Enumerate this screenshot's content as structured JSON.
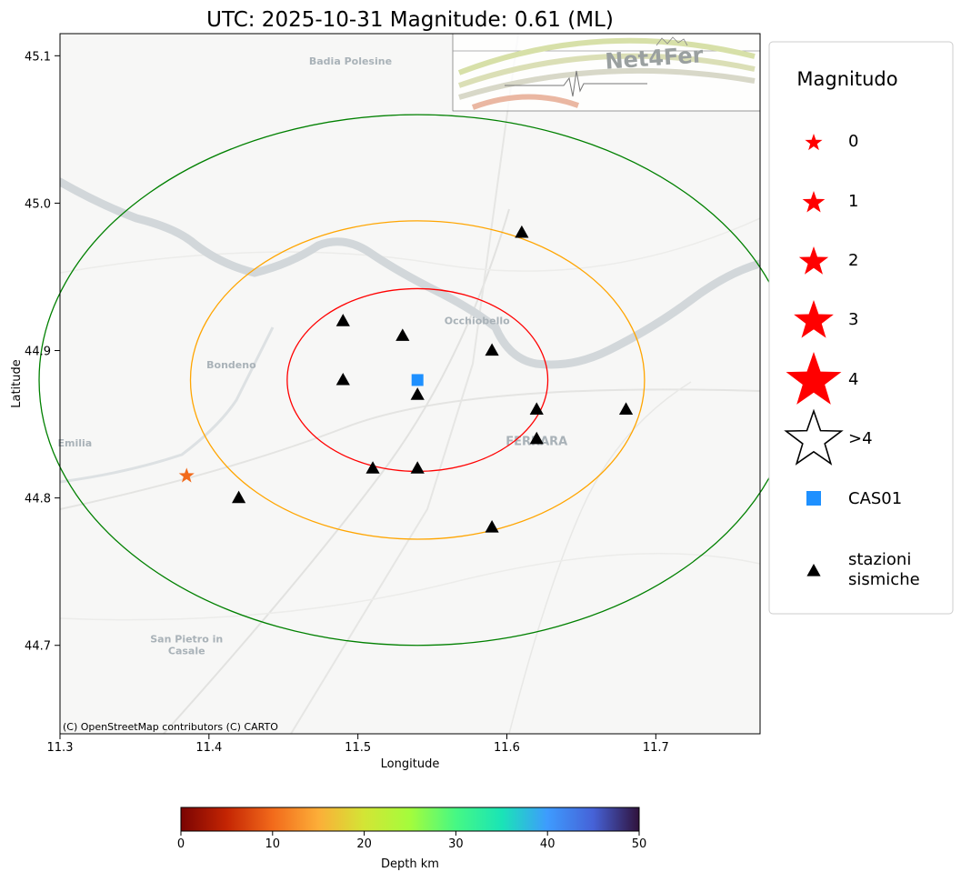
{
  "title": "UTC: 2025-10-31 Magnitude: 0.61 (ML)",
  "map": {
    "xlabel": "Longitude",
    "ylabel": "Latitude",
    "xlim": [
      11.3,
      11.77
    ],
    "ylim": [
      44.64,
      45.115
    ],
    "xticks": [
      "11.3",
      "11.4",
      "11.5",
      "11.6",
      "11.7"
    ],
    "yticks": [
      "44.7",
      "44.8",
      "44.9",
      "45.0",
      "45.1"
    ],
    "attribution": "(C) OpenStreetMap contributors (C) CARTO",
    "place_labels": [
      {
        "name": "Badia Polesine",
        "lon": 11.495,
        "lat": 45.094
      },
      {
        "name": "Occhiobello",
        "lon": 11.58,
        "lat": 44.918
      },
      {
        "name": "Bondeno",
        "lon": 11.415,
        "lat": 44.888
      },
      {
        "name": "FERRARA",
        "lon": 11.62,
        "lat": 44.836
      },
      {
        "name": "Emilia",
        "lon": 11.31,
        "lat": 44.835
      },
      {
        "name": "San Pietro in",
        "lon": 11.385,
        "lat": 44.702
      },
      {
        "name": "Casale",
        "lon": 11.385,
        "lat": 44.694
      }
    ],
    "logo_text": "Net4Fer",
    "epicenter": {
      "lon": 11.385,
      "lat": 44.815,
      "magnitude": 0.61,
      "depth_km": 10,
      "color": "#f26a1b"
    },
    "cas01": {
      "lon": 11.54,
      "lat": 44.88,
      "color": "#1e90ff"
    },
    "stations": [
      {
        "lon": 11.61,
        "lat": 44.98
      },
      {
        "lon": 11.49,
        "lat": 44.92
      },
      {
        "lon": 11.53,
        "lat": 44.91
      },
      {
        "lon": 11.59,
        "lat": 44.9
      },
      {
        "lon": 11.49,
        "lat": 44.88
      },
      {
        "lon": 11.54,
        "lat": 44.87
      },
      {
        "lon": 11.62,
        "lat": 44.86
      },
      {
        "lon": 11.68,
        "lat": 44.86
      },
      {
        "lon": 11.62,
        "lat": 44.84
      },
      {
        "lon": 11.51,
        "lat": 44.82
      },
      {
        "lon": 11.54,
        "lat": 44.82
      },
      {
        "lon": 11.42,
        "lat": 44.8
      },
      {
        "lon": 11.59,
        "lat": 44.78
      }
    ],
    "circles": [
      {
        "color": "#ff0000",
        "radius_deg_lat": 0.062
      },
      {
        "color": "#ffa500",
        "radius_deg_lat": 0.108
      },
      {
        "color": "#008000",
        "radius_deg_lat": 0.18
      }
    ]
  },
  "legend": {
    "title": "Magnitudo",
    "items": [
      {
        "label": "0",
        "type": "star",
        "color": "#ff0000",
        "magnitude": 0
      },
      {
        "label": "1",
        "type": "star",
        "color": "#ff0000",
        "magnitude": 1
      },
      {
        "label": "2",
        "type": "star",
        "color": "#ff0000",
        "magnitude": 2
      },
      {
        "label": "3",
        "type": "star",
        "color": "#ff0000",
        "magnitude": 3
      },
      {
        "label": "4",
        "type": "star",
        "color": "#ff0000",
        "magnitude": 4
      },
      {
        "label": ">4",
        "type": "star-outline",
        "color": "#000000",
        "magnitude": 5
      },
      {
        "label": "CAS01",
        "type": "square",
        "color": "#1e90ff"
      },
      {
        "label": "stazioni",
        "label2": "sismiche",
        "type": "triangle",
        "color": "#000000"
      }
    ]
  },
  "colorbar": {
    "label": "Depth km",
    "min": 0,
    "max": 50,
    "ticks": [
      "0",
      "10",
      "20",
      "30",
      "40",
      "50"
    ],
    "colormap": "turbo_r"
  }
}
